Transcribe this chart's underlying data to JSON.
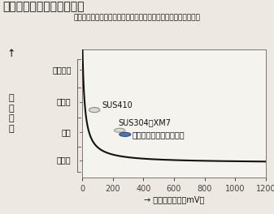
{
  "title": "発銹と孔食発生電位の関係",
  "subtitle": "（海岸で１年間暴露試験を行った、発銹と孔食発生電位の関係）",
  "xlabel": "→ 孔食発生電位（mV）",
  "ylabel_main": "発\n銹\n状\n況",
  "ytick_labels": [
    "全面発銹",
    "流れ銹",
    "点銹",
    "無発銹"
  ],
  "ytick_positions": [
    4.2,
    3.1,
    2.05,
    1.1
  ],
  "xticks": [
    0,
    200,
    400,
    600,
    800,
    1000,
    1200
  ],
  "xlim": [
    0,
    1200
  ],
  "ylim": [
    0.5,
    4.9
  ],
  "curve_color": "#111111",
  "background_color": "#ede9e2",
  "plot_bg_color": "#f5f3ee",
  "sus410_label": "SUS410",
  "sus304_label": "SUS304・XM7",
  "perfect_label": "パーフェクトステンレス",
  "sus410_x": 80,
  "sus410_y": 2.82,
  "sus304_x": 245,
  "sus304_y": 2.12,
  "perfect_x": 280,
  "perfect_y": 1.98,
  "curve_A": 62.0,
  "curve_B": 14.0,
  "curve_C": 1.0,
  "title_fontsize": 10,
  "subtitle_fontsize": 6.5,
  "tick_fontsize": 7,
  "annot_fontsize": 7,
  "ylabel_fontsize": 8
}
